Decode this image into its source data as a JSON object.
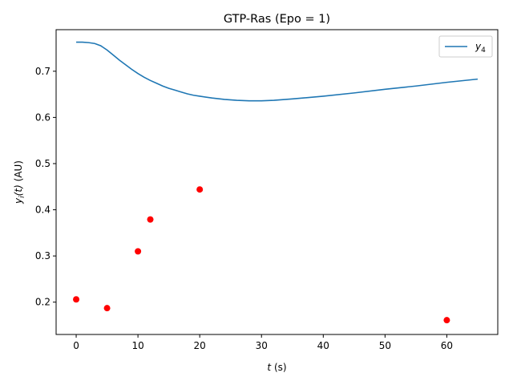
{
  "chart_data": {
    "type": "line",
    "title": "GTP-Ras (Epo = 1)",
    "xlabel_var": "t",
    "xlabel_unit": " (s)",
    "ylabel_var": "y",
    "ylabel_sub": "i",
    "ylabel_arg": "(t)",
    "ylabel_unit": " (AU)",
    "xlim": [
      -3.25,
      68.25
    ],
    "ylim": [
      0.13,
      0.79
    ],
    "xticks": [
      0,
      10,
      20,
      30,
      40,
      50,
      60
    ],
    "yticks": [
      0.2,
      0.3,
      0.4,
      0.5,
      0.6,
      0.7
    ],
    "ytick_labels": [
      "0.2",
      "0.3",
      "0.4",
      "0.5",
      "0.6",
      "0.7"
    ],
    "grid": false,
    "legend_position": "top-right",
    "series": [
      {
        "name_var": "y",
        "name_sub": "4",
        "type": "line",
        "color": "#1f77b4",
        "x": [
          0,
          1,
          2,
          3,
          4,
          5,
          6,
          7,
          8,
          9,
          10,
          11,
          12,
          13,
          14,
          15,
          16,
          17,
          18,
          19,
          20,
          22,
          24,
          26,
          28,
          30,
          32,
          35,
          40,
          45,
          50,
          55,
          60,
          65
        ],
        "y": [
          0.763,
          0.763,
          0.762,
          0.76,
          0.755,
          0.746,
          0.735,
          0.724,
          0.714,
          0.704,
          0.695,
          0.687,
          0.68,
          0.674,
          0.668,
          0.663,
          0.659,
          0.655,
          0.651,
          0.648,
          0.646,
          0.642,
          0.639,
          0.637,
          0.636,
          0.636,
          0.637,
          0.64,
          0.646,
          0.653,
          0.661,
          0.668,
          0.676,
          0.683
        ]
      },
      {
        "name": "",
        "type": "scatter",
        "color": "#ff0000",
        "x": [
          0,
          5,
          10,
          12,
          20,
          60
        ],
        "y": [
          0.206,
          0.187,
          0.31,
          0.379,
          0.444,
          0.161
        ]
      }
    ]
  }
}
